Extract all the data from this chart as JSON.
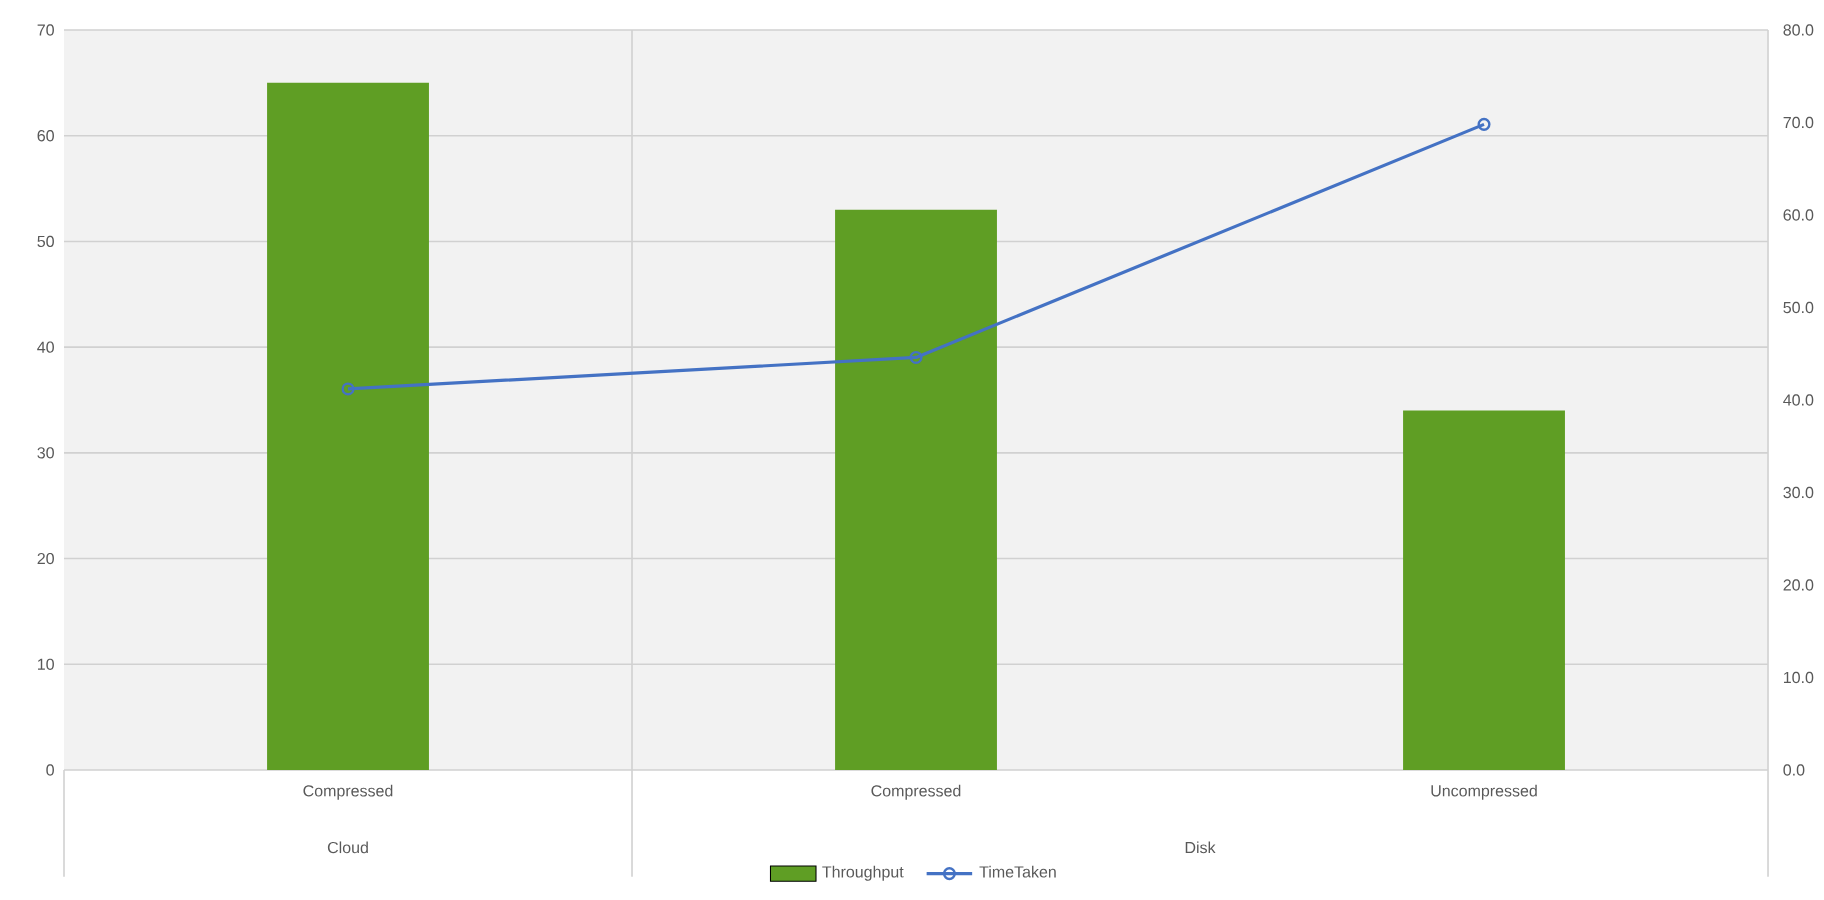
{
  "chart_data": {
    "type": "bar",
    "categories": [
      "Compressed",
      "Compressed",
      "Uncompressed"
    ],
    "series": [
      {
        "name": "Throughput",
        "color": "#5f9e24",
        "values": [
          65,
          53,
          34
        ]
      },
      {
        "name": "TimeTaken",
        "type": "line",
        "axis": "y2",
        "color": "#4472c4",
        "marker": "circle",
        "values": [
          41.2,
          44.6,
          69.8
        ]
      }
    ],
    "annotations": [
      "Cloud",
      "Disk"
    ],
    "ylim": [
      0,
      70
    ],
    "yticks": [
      0,
      10,
      20,
      30,
      40,
      50,
      60,
      70
    ],
    "y2lim": [
      0,
      80
    ],
    "y2ticks": [
      {
        "value": 0,
        "label": "0.0"
      },
      {
        "value": 10,
        "label": "10.0"
      },
      {
        "value": 20,
        "label": "20.0"
      },
      {
        "value": 30,
        "label": "30.0"
      },
      {
        "value": 40,
        "label": "40.0"
      },
      {
        "value": 50,
        "label": "50.0"
      },
      {
        "value": 60,
        "label": "60.0"
      },
      {
        "value": 70,
        "label": "70.0"
      },
      {
        "value": 80,
        "label": "80.0"
      }
    ],
    "grid": "y",
    "legend": "bottom"
  }
}
